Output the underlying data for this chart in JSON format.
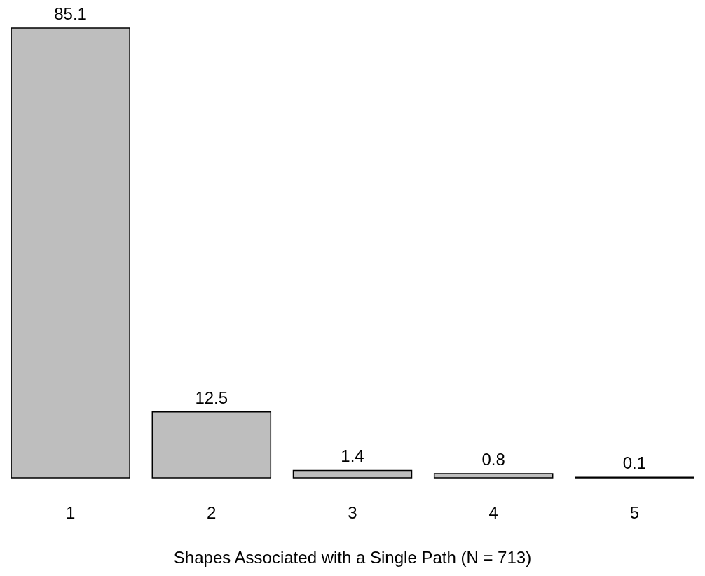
{
  "chart_data": {
    "type": "bar",
    "xlabel": "Shapes Associated with a Single Path (N = 713)",
    "categories": [
      "1",
      "2",
      "3",
      "4",
      "5"
    ],
    "values": [
      85.1,
      12.5,
      1.4,
      0.8,
      0.1
    ],
    "color": "#bebebe",
    "data_labels": true
  }
}
